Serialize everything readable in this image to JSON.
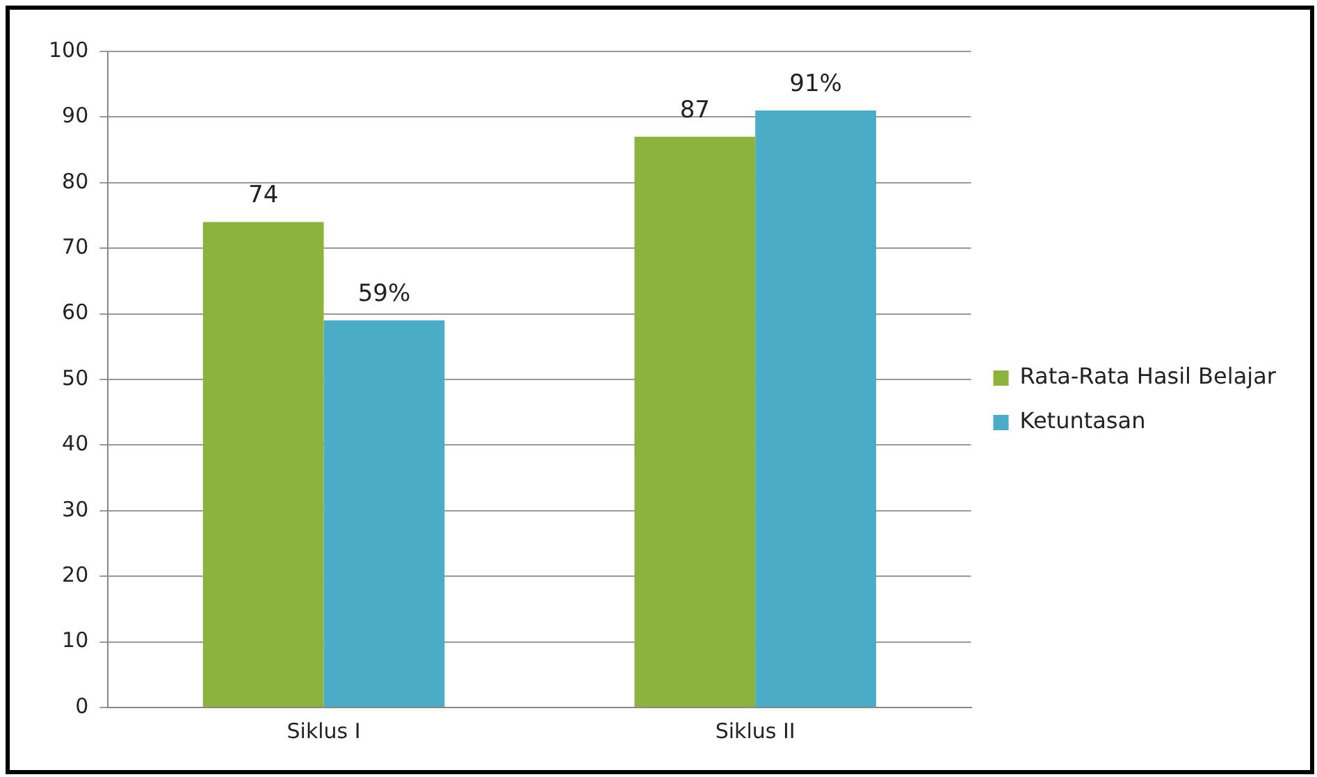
{
  "chart_data": {
    "type": "bar",
    "categories": [
      "Siklus I",
      "Siklus II"
    ],
    "series": [
      {
        "name": "Rata-Rata Hasil Belajar",
        "color": "#8db33c",
        "values": [
          74,
          87
        ],
        "value_labels": [
          "74",
          "87"
        ]
      },
      {
        "name": "Ketuntasan",
        "color": "#4aacc6",
        "values": [
          59,
          91
        ],
        "value_labels": [
          "59%",
          "91%"
        ]
      }
    ],
    "ylim": [
      0,
      100
    ],
    "yticks": [
      0,
      10,
      20,
      30,
      40,
      50,
      60,
      70,
      80,
      90,
      100
    ],
    "grid": "y",
    "legend": "right"
  }
}
